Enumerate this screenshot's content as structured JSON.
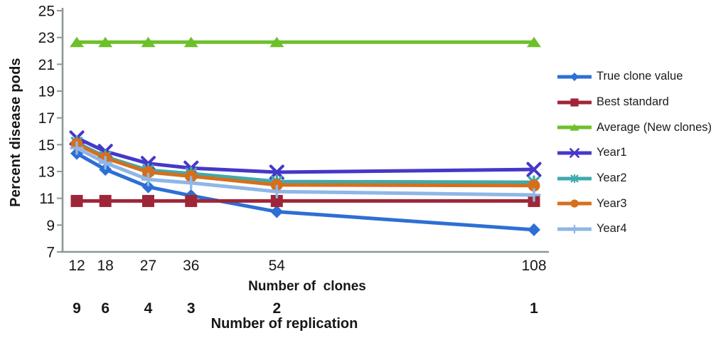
{
  "chart_data": {
    "type": "line",
    "title": "",
    "grid": false,
    "legend_position": "right",
    "axis_color": "#8C9896",
    "y_axis": {
      "label": "Percent disease pods",
      "min": 7,
      "max": 25,
      "tick_step": 2,
      "ticks": [
        25,
        23,
        21,
        19,
        17,
        15,
        13,
        11,
        9,
        7
      ]
    },
    "x_axis": {
      "label_primary": "Number of  clones",
      "label_secondary": "Number of replication",
      "clones": [
        12,
        18,
        27,
        36,
        54,
        108
      ],
      "replications": [
        9,
        6,
        4,
        3,
        2,
        1
      ],
      "scale": "linear-in-clones"
    },
    "series": [
      {
        "name": "True clone value",
        "color": "#2D6FD5",
        "marker": "diamond",
        "values": [
          14.35,
          13.15,
          11.85,
          11.2,
          10.0,
          8.65
        ]
      },
      {
        "name": "Best standard",
        "color": "#9E2638",
        "marker": "square",
        "values": [
          10.8,
          10.8,
          10.8,
          10.8,
          10.8,
          10.8
        ]
      },
      {
        "name": "Average (New clones)",
        "color": "#6DC02A",
        "marker": "triangle",
        "values": [
          22.65,
          22.65,
          22.65,
          22.65,
          22.65,
          22.65
        ]
      },
      {
        "name": "Year1",
        "color": "#4538C8",
        "marker": "x",
        "values": [
          15.5,
          14.5,
          13.6,
          13.25,
          12.95,
          13.15
        ]
      },
      {
        "name": "Year2",
        "color": "#3EAAAE",
        "marker": "asterisk",
        "values": [
          15.15,
          14.1,
          13.1,
          12.85,
          12.25,
          12.2
        ]
      },
      {
        "name": "Year3",
        "color": "#D66F1C",
        "marker": "circle",
        "values": [
          15.05,
          14.0,
          12.95,
          12.65,
          12.0,
          11.95
        ]
      },
      {
        "name": "Year4",
        "color": "#8FB6E8",
        "marker": "plus",
        "values": [
          14.75,
          13.65,
          12.4,
          12.15,
          11.5,
          11.25
        ]
      }
    ]
  }
}
